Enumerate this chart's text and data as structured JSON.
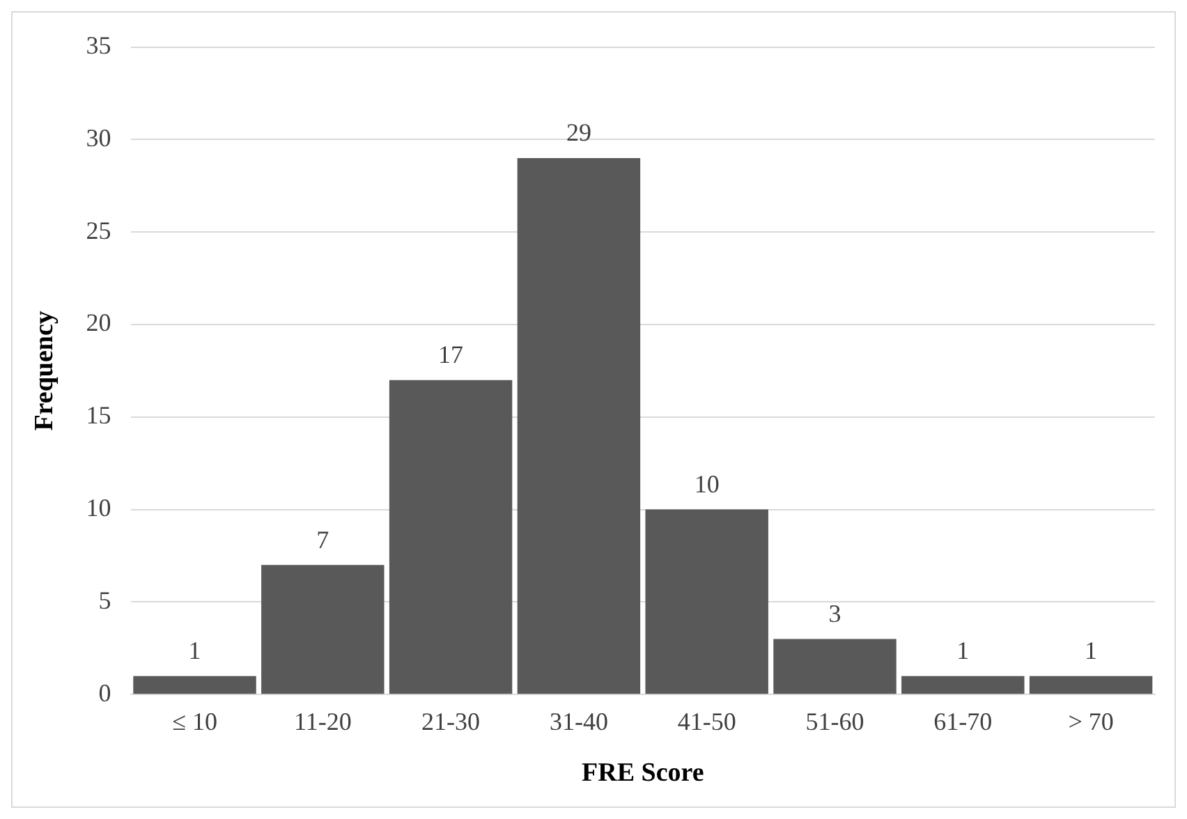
{
  "chart_data": {
    "type": "bar",
    "xlabel": "FRE Score",
    "ylabel": "Frequency",
    "categories": [
      "≤ 10",
      "11-20",
      "21-30",
      "31-40",
      "41-50",
      "51-60",
      "61-70",
      "> 70"
    ],
    "values": [
      1,
      7,
      17,
      29,
      10,
      3,
      1,
      1
    ],
    "color": "#595959",
    "ylim": [
      0,
      35
    ],
    "yticks": [
      0,
      5,
      10,
      15,
      20,
      25,
      30,
      35
    ],
    "grid": "y",
    "data_labels": true
  }
}
